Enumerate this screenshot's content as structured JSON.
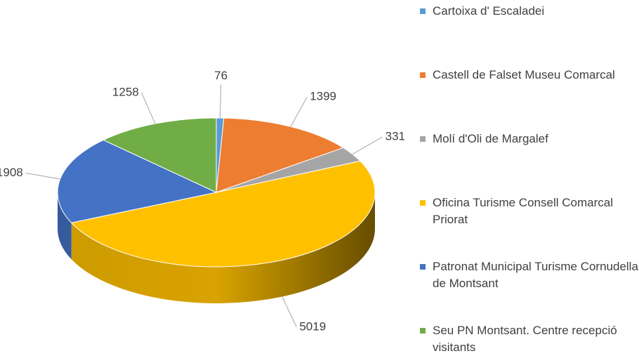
{
  "chart_data": {
    "type": "pie3d",
    "categories": [
      "Cartoixa d' Escaladei",
      "Castell de Falset Museu Comarcal",
      "Molí d'Oli de Margalef",
      "Oficina Turisme Consell Comarcal Priorat",
      "Patronat Municipal Turisme Cornudella de Montsant",
      "Seu PN Montsant. Centre recepció visitants"
    ],
    "values": [
      76,
      1399,
      331,
      5019,
      1908,
      1258
    ],
    "colors": [
      "#5b9bd5",
      "#ed7d31",
      "#a5a5a5",
      "#ffc000",
      "#4472c4",
      "#70ad47"
    ],
    "legend": "right"
  }
}
